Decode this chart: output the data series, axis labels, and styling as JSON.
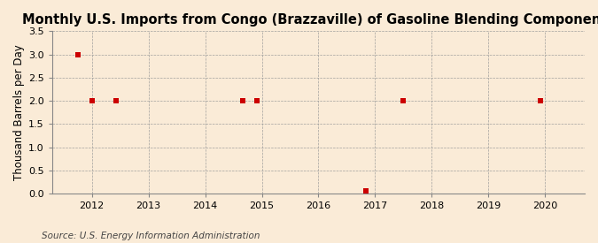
{
  "title": "Monthly U.S. Imports from Congo (Brazzaville) of Gasoline Blending Components",
  "ylabel": "Thousand Barrels per Day",
  "source": "Source: U.S. Energy Information Administration",
  "background_color": "#faebd7",
  "plot_background_color": "#faebd7",
  "marker_color": "#cc0000",
  "marker_size": 4,
  "ylim": [
    0,
    3.5
  ],
  "yticks": [
    0.0,
    0.5,
    1.0,
    1.5,
    2.0,
    2.5,
    3.0,
    3.5
  ],
  "xlim_start": 2011.3,
  "xlim_end": 2020.7,
  "xtick_positions": [
    2012,
    2013,
    2014,
    2015,
    2016,
    2017,
    2018,
    2019,
    2020
  ],
  "data_points": [
    {
      "date": 2011.75,
      "value": 3.0
    },
    {
      "date": 2012.0,
      "value": 2.0
    },
    {
      "date": 2012.42,
      "value": 2.0
    },
    {
      "date": 2014.67,
      "value": 2.0
    },
    {
      "date": 2014.92,
      "value": 2.0
    },
    {
      "date": 2016.83,
      "value": 0.05
    },
    {
      "date": 2017.5,
      "value": 2.0
    },
    {
      "date": 2019.92,
      "value": 2.0
    }
  ],
  "title_fontsize": 10.5,
  "axis_fontsize": 8.5,
  "tick_fontsize": 8,
  "source_fontsize": 7.5,
  "grid_color": "#999999",
  "grid_linewidth": 0.5
}
